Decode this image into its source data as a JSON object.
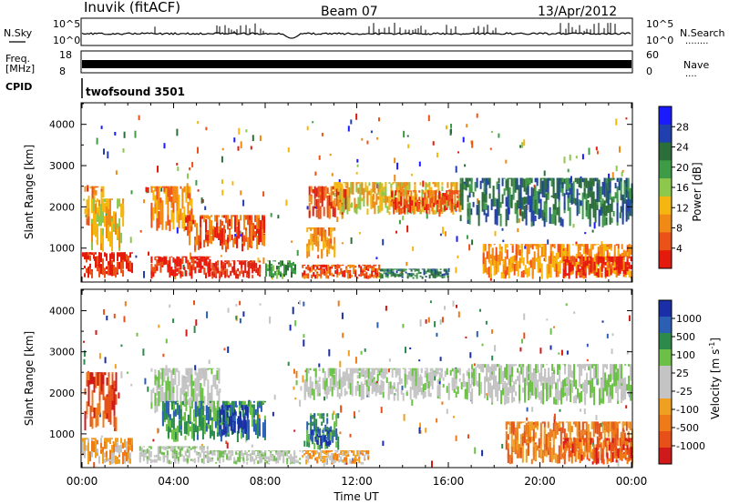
{
  "header": {
    "station": "Inuvik (fitACF)",
    "beam": "Beam 07",
    "date": "13/Apr/2012"
  },
  "noise_panel": {
    "left_label": "N.Sky",
    "right_label": "N.Search",
    "right_legend_line": "........",
    "left_ticks": [
      "10^5",
      "10^0"
    ],
    "right_ticks": [
      "10^5",
      "10^0"
    ]
  },
  "freq_panel": {
    "left_label_1": "Freq.",
    "left_label_2": "[MHz]",
    "right_label": "Nave",
    "right_legend_line": "....",
    "left_ticks": [
      "18",
      "8"
    ],
    "right_ticks": [
      "60",
      "0"
    ]
  },
  "cpid": {
    "label": "CPID",
    "value": "twofsound 3501"
  },
  "x_axis": {
    "title": "Time UT",
    "ticks": [
      "00:00",
      "04:00",
      "08:00",
      "12:00",
      "16:00",
      "20:00",
      "00:00"
    ]
  },
  "colors": {
    "power": [
      "#1a1aff",
      "#2040b0",
      "#2c6e3a",
      "#3d9c45",
      "#8cc84c",
      "#f5b70f",
      "#f08a14",
      "#eb5218",
      "#e41a0c"
    ],
    "velocity": [
      "#1a2ea8",
      "#2a5fb3",
      "#2c8a4a",
      "#6cc048",
      "#c4c4c4",
      "#c4c4c4",
      "#f0a020",
      "#ee7a18",
      "#e8501a",
      "#d01a1a"
    ]
  },
  "chart_data": [
    {
      "type": "heatmap",
      "title": "Power",
      "ylabel": "Slant Range [km]",
      "xlabel": "",
      "ylim": [
        200,
        4500
      ],
      "xlim": [
        0,
        24
      ],
      "y_ticks": [
        "1000",
        "2000",
        "3000",
        "4000"
      ],
      "colorbar": {
        "label": "Power [dB]",
        "ticks": [
          "4",
          "8",
          "12",
          "16",
          "20",
          "24",
          "28"
        ]
      },
      "patches": [
        {
          "t0": 0.0,
          "t1": 2.2,
          "r0": 250,
          "r1": 900,
          "level": 8
        },
        {
          "t0": 0.1,
          "t1": 0.9,
          "r0": 1500,
          "r1": 2500,
          "level": 6
        },
        {
          "t0": 0.4,
          "t1": 1.8,
          "r0": 900,
          "r1": 2200,
          "level": 5
        },
        {
          "t0": 3.0,
          "t1": 5.6,
          "r0": 250,
          "r1": 800,
          "level": 8
        },
        {
          "t0": 3.0,
          "t1": 4.8,
          "r0": 1400,
          "r1": 2500,
          "level": 6
        },
        {
          "t0": 4.5,
          "t1": 8.0,
          "r0": 900,
          "r1": 1800,
          "level": 7
        },
        {
          "t0": 5.5,
          "t1": 7.8,
          "r0": 250,
          "r1": 700,
          "level": 8
        },
        {
          "t0": 8.0,
          "t1": 9.3,
          "r0": 250,
          "r1": 700,
          "level": 3
        },
        {
          "t0": 9.9,
          "t1": 11.5,
          "r0": 1700,
          "r1": 2500,
          "level": 7
        },
        {
          "t0": 9.8,
          "t1": 11.0,
          "r0": 700,
          "r1": 1500,
          "level": 6
        },
        {
          "t0": 9.6,
          "t1": 13.0,
          "r0": 250,
          "r1": 600,
          "level": 7
        },
        {
          "t0": 11.0,
          "t1": 16.5,
          "r0": 1800,
          "r1": 2600,
          "level": 5
        },
        {
          "t0": 13.5,
          "t1": 16.5,
          "r0": 1800,
          "r1": 2400,
          "level": 7
        },
        {
          "t0": 13.0,
          "t1": 16.0,
          "r0": 250,
          "r1": 500,
          "level": 2
        },
        {
          "t0": 16.5,
          "t1": 24.0,
          "r0": 1500,
          "r1": 2700,
          "level": 2
        },
        {
          "t0": 17.5,
          "t1": 24.0,
          "r0": 250,
          "r1": 1100,
          "level": 6
        },
        {
          "t0": 21.0,
          "t1": 24.0,
          "r0": 250,
          "r1": 800,
          "level": 8
        }
      ]
    },
    {
      "type": "heatmap",
      "title": "Velocity",
      "ylabel": "Slant Range [km]",
      "xlabel": "Time UT",
      "ylim": [
        200,
        4500
      ],
      "xlim": [
        0,
        24
      ],
      "y_ticks": [
        "1000",
        "2000",
        "3000",
        "4000"
      ],
      "colorbar": {
        "label": "Velocity [m s^-1]",
        "ticks": [
          "1000",
          "500",
          "100",
          "25",
          "-25",
          "-100",
          "-500",
          "-1000"
        ]
      },
      "patches": [
        {
          "t0": 0.0,
          "t1": 2.2,
          "r0": 250,
          "r1": 900,
          "level": 6
        },
        {
          "t0": 0.1,
          "t1": 1.5,
          "r0": 1000,
          "r1": 2500,
          "level": 8
        },
        {
          "t0": 2.5,
          "t1": 5.5,
          "r0": 250,
          "r1": 700,
          "level": 4
        },
        {
          "t0": 3.0,
          "t1": 6.0,
          "r0": 1500,
          "r1": 2600,
          "level": 4
        },
        {
          "t0": 3.5,
          "t1": 8.0,
          "r0": 800,
          "r1": 1800,
          "level": 2
        },
        {
          "t0": 6.0,
          "t1": 7.2,
          "r0": 900,
          "r1": 1700,
          "level": 0
        },
        {
          "t0": 5.5,
          "t1": 9.5,
          "r0": 250,
          "r1": 600,
          "level": 4
        },
        {
          "t0": 9.8,
          "t1": 11.2,
          "r0": 600,
          "r1": 1500,
          "level": 2
        },
        {
          "t0": 10.0,
          "t1": 10.8,
          "r0": 700,
          "r1": 1100,
          "level": 0
        },
        {
          "t0": 9.7,
          "t1": 17.0,
          "r0": 1800,
          "r1": 2600,
          "level": 4
        },
        {
          "t0": 9.6,
          "t1": 12.5,
          "r0": 250,
          "r1": 600,
          "level": 6
        },
        {
          "t0": 17.0,
          "t1": 24.0,
          "r0": 1700,
          "r1": 2700,
          "level": 4
        },
        {
          "t0": 18.5,
          "t1": 24.0,
          "r0": 250,
          "r1": 1300,
          "level": 7
        },
        {
          "t0": 21.0,
          "t1": 24.0,
          "r0": 250,
          "r1": 900,
          "level": 8
        }
      ]
    }
  ]
}
